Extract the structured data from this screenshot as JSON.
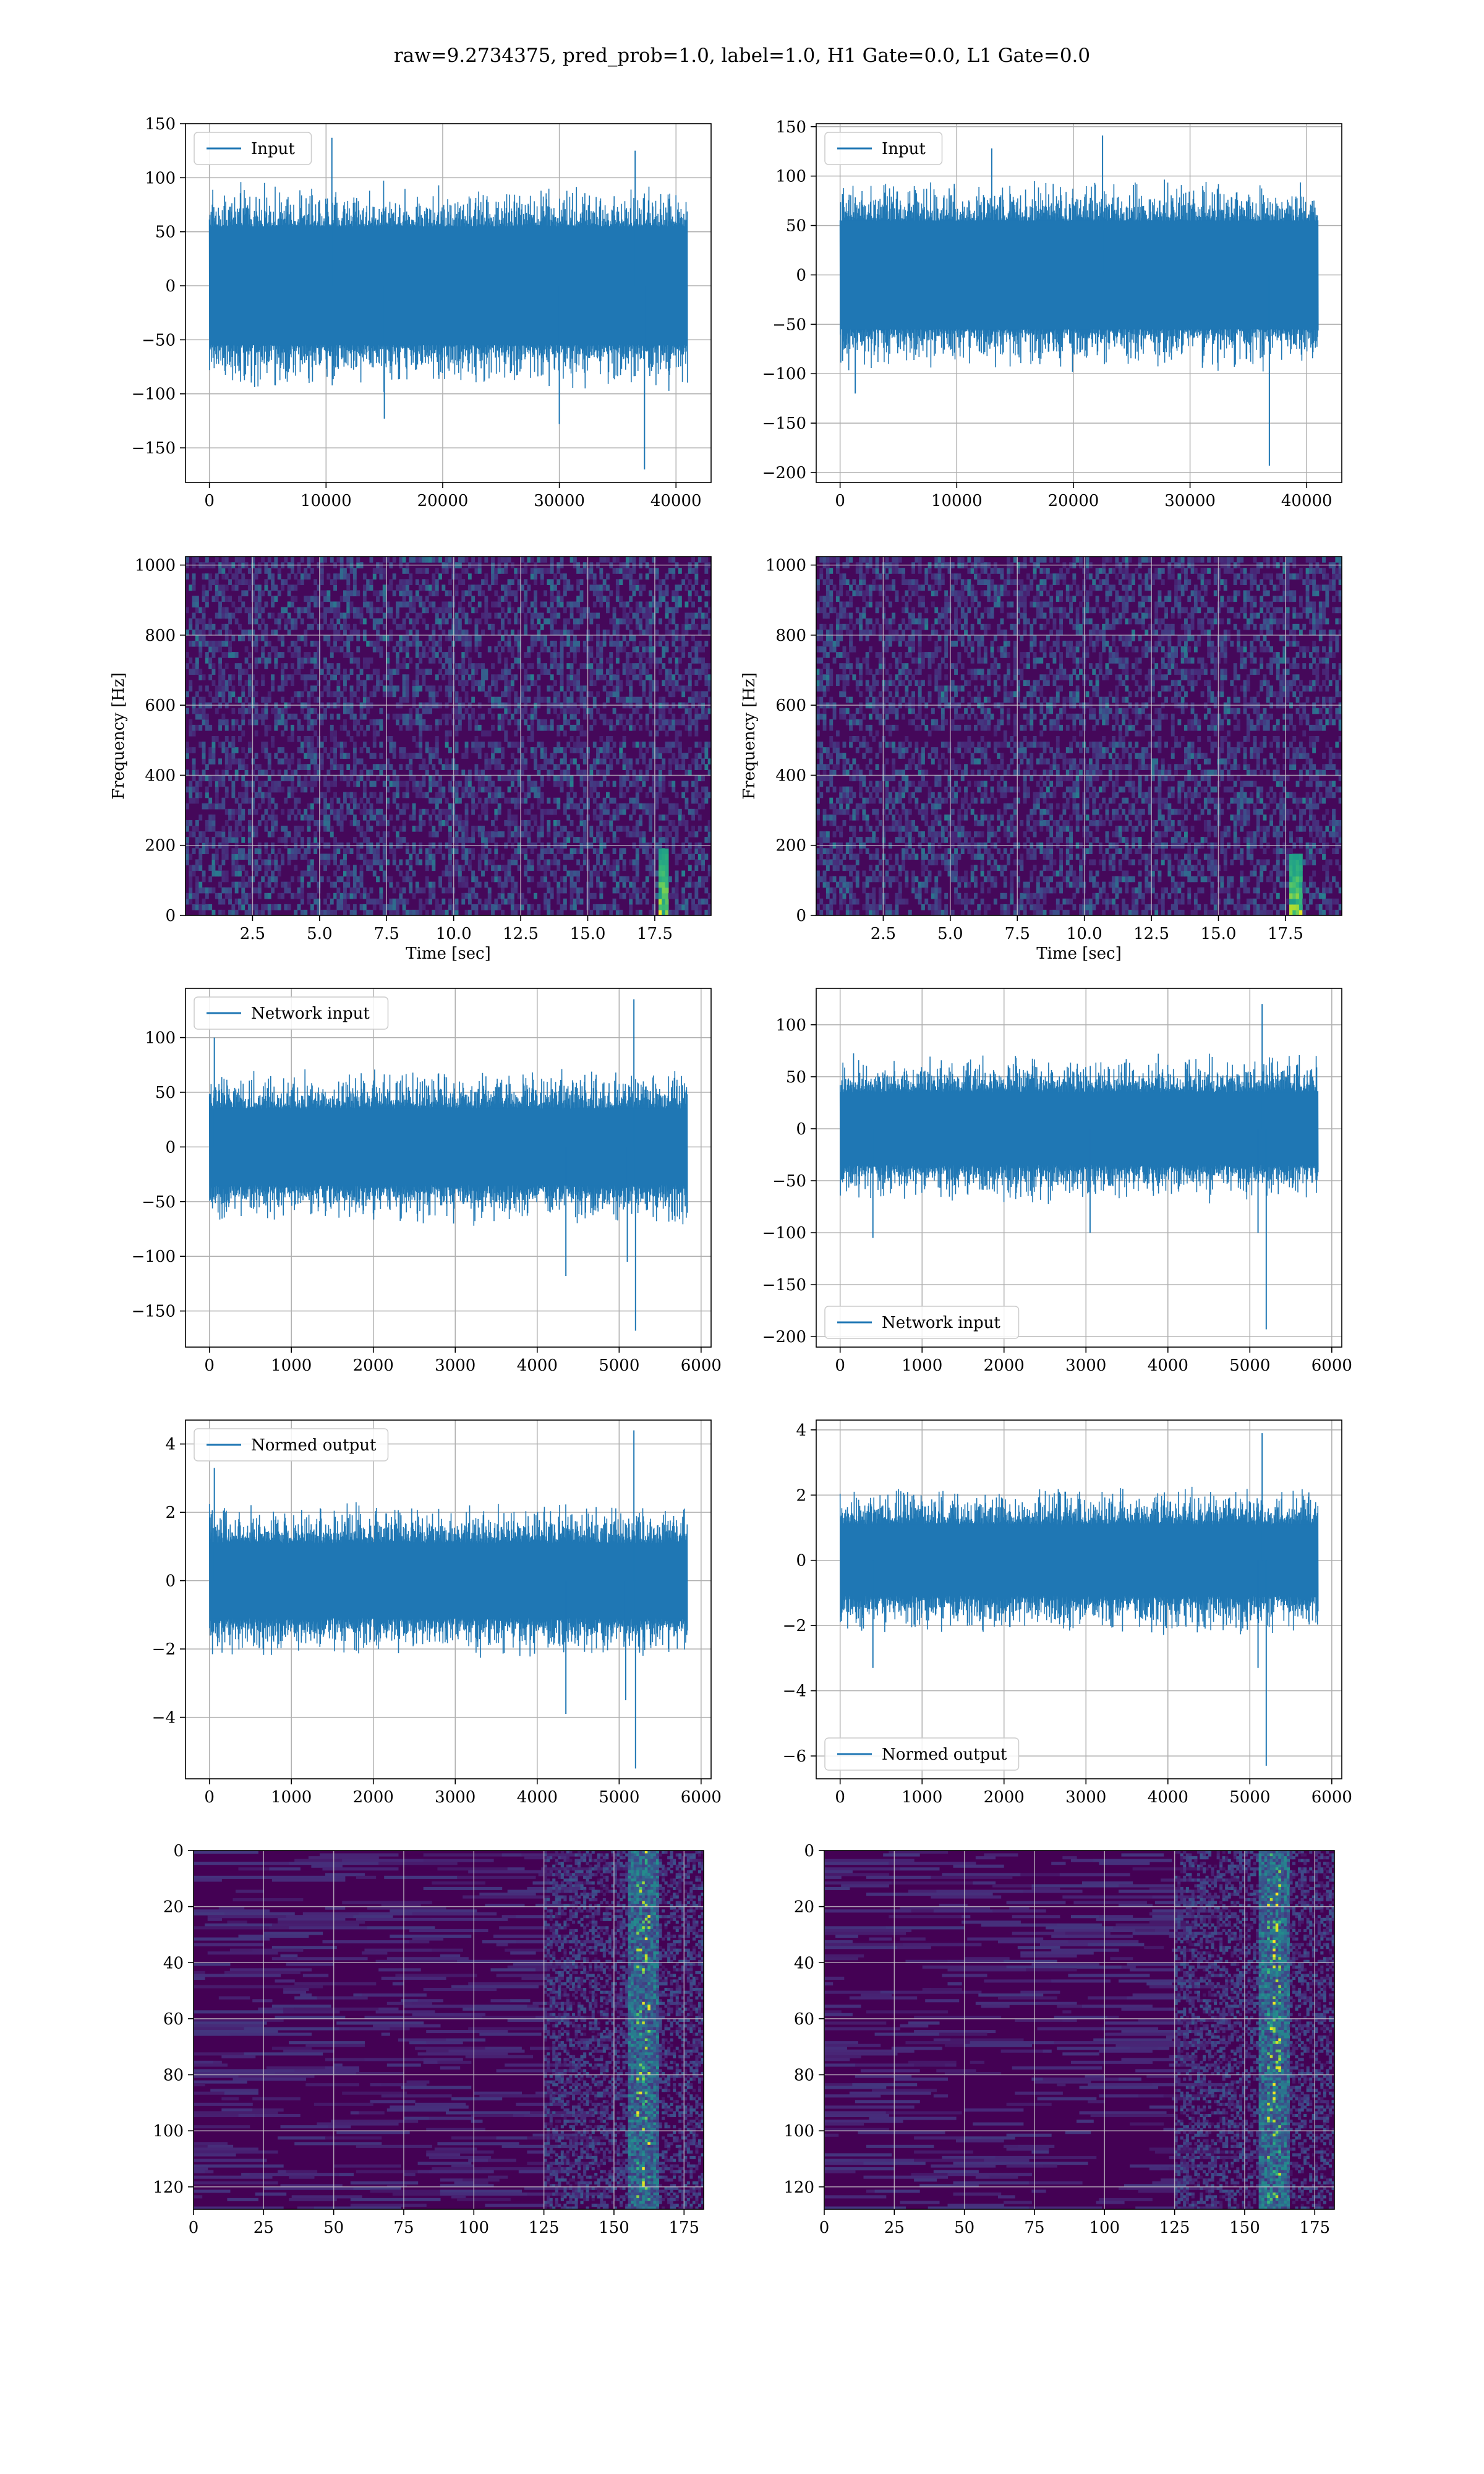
{
  "figure": {
    "title": "raw=9.2734375, pred_prob=1.0, label=1.0, H1 Gate=0.0, L1 Gate=0.0",
    "line_color": "#1f77b4",
    "grid_color": "#b0b0b0"
  },
  "chart_data": [
    {
      "id": "input-h1",
      "type": "line",
      "signal": "noise",
      "legend": "Input",
      "legend_loc": "upper-left",
      "x_range": [
        0,
        40960
      ],
      "xlim": [
        -2048,
        43008
      ],
      "ylim": [
        -182,
        150
      ],
      "xticks": [
        0,
        10000,
        20000,
        30000,
        40000
      ],
      "yticks": [
        -150,
        -100,
        -50,
        0,
        50,
        100,
        150
      ],
      "xtick_labels": [
        "0",
        "10000",
        "20000",
        "30000",
        "40000"
      ],
      "ytick_labels": [
        "−150",
        "−100",
        "−50",
        "0",
        "50",
        "100",
        "150"
      ],
      "envelope": 95,
      "core": 55,
      "ymin": -170,
      "ymax": 137,
      "spikes": [
        {
          "x": 37300,
          "y": -170
        },
        {
          "x": 36500,
          "y": 125
        },
        {
          "x": 10500,
          "y": 137
        },
        {
          "x": 30000,
          "y": -128
        },
        {
          "x": 15000,
          "y": -123
        }
      ]
    },
    {
      "id": "input-l1",
      "type": "line",
      "signal": "noise",
      "legend": "Input",
      "legend_loc": "upper-left",
      "x_range": [
        0,
        40960
      ],
      "xlim": [
        -2048,
        43008
      ],
      "ylim": [
        -210,
        153
      ],
      "xticks": [
        0,
        10000,
        20000,
        30000,
        40000
      ],
      "yticks": [
        -200,
        -150,
        -100,
        -50,
        0,
        50,
        100,
        150
      ],
      "xtick_labels": [
        "0",
        "10000",
        "20000",
        "30000",
        "40000"
      ],
      "ytick_labels": [
        "−200",
        "−150",
        "−100",
        "−50",
        "0",
        "50",
        "100",
        "150"
      ],
      "envelope": 95,
      "core": 55,
      "ymin": -193,
      "ymax": 141,
      "spikes": [
        {
          "x": 36800,
          "y": -193
        },
        {
          "x": 22500,
          "y": 141
        },
        {
          "x": 1300,
          "y": -120
        },
        {
          "x": 13000,
          "y": 128
        }
      ]
    },
    {
      "id": "spec-h1",
      "type": "heatmap",
      "signal": "spectrogram",
      "xlim": [
        0,
        19.6
      ],
      "ylim": [
        0,
        1024
      ],
      "xticks": [
        2.5,
        5.0,
        7.5,
        10.0,
        12.5,
        15.0,
        17.5
      ],
      "yticks": [
        0,
        200,
        400,
        600,
        800,
        1000
      ],
      "xtick_labels": [
        "2.5",
        "5.0",
        "7.5",
        "10.0",
        "12.5",
        "15.0",
        "17.5"
      ],
      "ytick_labels": [
        "0",
        "200",
        "400",
        "600",
        "800",
        "1000"
      ],
      "xlabel": "Time [sec]",
      "ylabel": "Frequency [Hz]",
      "chirp_time": 17.8,
      "chirp_fmax": 200
    },
    {
      "id": "spec-l1",
      "type": "heatmap",
      "signal": "spectrogram",
      "xlim": [
        0,
        19.6
      ],
      "ylim": [
        0,
        1024
      ],
      "xticks": [
        2.5,
        5.0,
        7.5,
        10.0,
        12.5,
        15.0,
        17.5
      ],
      "yticks": [
        0,
        200,
        400,
        600,
        800,
        1000
      ],
      "xtick_labels": [
        "2.5",
        "5.0",
        "7.5",
        "10.0",
        "12.5",
        "15.0",
        "17.5"
      ],
      "ytick_labels": [
        "0",
        "200",
        "400",
        "600",
        "800",
        "1000"
      ],
      "xlabel": "Time [sec]",
      "ylabel": "Frequency [Hz]",
      "chirp_time": 17.9,
      "chirp_fmax": 180
    },
    {
      "id": "network-h1",
      "type": "line",
      "signal": "noise",
      "legend": "Network input",
      "legend_loc": "upper-left",
      "x_range": [
        0,
        5830
      ],
      "xlim": [
        -292,
        6122
      ],
      "ylim": [
        -183,
        145
      ],
      "xticks": [
        0,
        1000,
        2000,
        3000,
        4000,
        5000,
        6000
      ],
      "yticks": [
        -150,
        -100,
        -50,
        0,
        50,
        100
      ],
      "xtick_labels": [
        "0",
        "1000",
        "2000",
        "3000",
        "4000",
        "5000",
        "6000"
      ],
      "ytick_labels": [
        "−150",
        "−100",
        "−50",
        "0",
        "50",
        "100"
      ],
      "envelope": 70,
      "core": 35,
      "ymin": -168,
      "ymax": 135,
      "spikes": [
        {
          "x": 5200,
          "y": -168
        },
        {
          "x": 5180,
          "y": 135
        },
        {
          "x": 5100,
          "y": -105
        },
        {
          "x": 4350,
          "y": -118
        },
        {
          "x": 60,
          "y": 100
        }
      ]
    },
    {
      "id": "network-l1",
      "type": "line",
      "signal": "noise",
      "legend": "Network input",
      "legend_loc": "lower-left",
      "x_range": [
        0,
        5830
      ],
      "xlim": [
        -292,
        6122
      ],
      "ylim": [
        -210,
        135
      ],
      "xticks": [
        0,
        1000,
        2000,
        3000,
        4000,
        5000,
        6000
      ],
      "yticks": [
        -200,
        -150,
        -100,
        -50,
        0,
        50,
        100
      ],
      "xtick_labels": [
        "0",
        "1000",
        "2000",
        "3000",
        "4000",
        "5000",
        "6000"
      ],
      "ytick_labels": [
        "−200",
        "−150",
        "−100",
        "−50",
        "0",
        "50",
        "100"
      ],
      "envelope": 70,
      "core": 35,
      "ymin": -193,
      "ymax": 120,
      "spikes": [
        {
          "x": 5200,
          "y": -193
        },
        {
          "x": 5150,
          "y": 120
        },
        {
          "x": 5100,
          "y": -100
        },
        {
          "x": 400,
          "y": -105
        },
        {
          "x": 3050,
          "y": -100
        }
      ]
    },
    {
      "id": "normed-h1",
      "type": "line",
      "signal": "noise",
      "legend": "Normed output",
      "legend_loc": "upper-left",
      "x_range": [
        0,
        5830
      ],
      "xlim": [
        -292,
        6122
      ],
      "ylim": [
        -5.8,
        4.7
      ],
      "xticks": [
        0,
        1000,
        2000,
        3000,
        4000,
        5000,
        6000
      ],
      "yticks": [
        -4,
        -2,
        0,
        2,
        4
      ],
      "xtick_labels": [
        "0",
        "1000",
        "2000",
        "3000",
        "4000",
        "5000",
        "6000"
      ],
      "ytick_labels": [
        "−4",
        "−2",
        "0",
        "2",
        "4"
      ],
      "envelope": 2.2,
      "core": 1.1,
      "ymin": -5.5,
      "ymax": 4.4,
      "spikes": [
        {
          "x": 5200,
          "y": -5.5
        },
        {
          "x": 5180,
          "y": 4.4
        },
        {
          "x": 4350,
          "y": -3.9
        },
        {
          "x": 60,
          "y": 3.3
        },
        {
          "x": 5080,
          "y": -3.5
        }
      ]
    },
    {
      "id": "normed-l1",
      "type": "line",
      "signal": "noise",
      "legend": "Normed output",
      "legend_loc": "lower-left",
      "x_range": [
        0,
        5830
      ],
      "xlim": [
        -292,
        6122
      ],
      "ylim": [
        -6.7,
        4.3
      ],
      "xticks": [
        0,
        1000,
        2000,
        3000,
        4000,
        5000,
        6000
      ],
      "yticks": [
        -6,
        -4,
        -2,
        0,
        2,
        4
      ],
      "xtick_labels": [
        "0",
        "1000",
        "2000",
        "3000",
        "4000",
        "5000",
        "6000"
      ],
      "ytick_labels": [
        "−6",
        "−4",
        "−2",
        "0",
        "2",
        "4"
      ],
      "envelope": 2.2,
      "core": 1.1,
      "ymin": -6.3,
      "ymax": 3.9,
      "spikes": [
        {
          "x": 5200,
          "y": -6.3
        },
        {
          "x": 5150,
          "y": 3.9
        },
        {
          "x": 5100,
          "y": -3.3
        },
        {
          "x": 400,
          "y": -3.3
        }
      ]
    },
    {
      "id": "feature-h1",
      "type": "heatmap",
      "signal": "feature",
      "xlim": [
        0,
        182
      ],
      "ylim": [
        128,
        0
      ],
      "xticks": [
        0,
        25,
        50,
        75,
        100,
        125,
        150,
        175
      ],
      "yticks": [
        0,
        20,
        40,
        60,
        80,
        100,
        120
      ],
      "xtick_labels": [
        "0",
        "25",
        "50",
        "75",
        "100",
        "125",
        "150",
        "175"
      ],
      "ytick_labels": [
        "0",
        "20",
        "40",
        "60",
        "80",
        "100",
        "120"
      ],
      "active_from": 125,
      "peak_col": 160
    },
    {
      "id": "feature-l1",
      "type": "heatmap",
      "signal": "feature",
      "xlim": [
        0,
        182
      ],
      "ylim": [
        128,
        0
      ],
      "xticks": [
        0,
        25,
        50,
        75,
        100,
        125,
        150,
        175
      ],
      "yticks": [
        0,
        20,
        40,
        60,
        80,
        100,
        120
      ],
      "xtick_labels": [
        "0",
        "25",
        "50",
        "75",
        "100",
        "125",
        "150",
        "175"
      ],
      "ytick_labels": [
        "0",
        "20",
        "40",
        "60",
        "80",
        "100",
        "120"
      ],
      "active_from": 125,
      "peak_col": 160
    }
  ]
}
